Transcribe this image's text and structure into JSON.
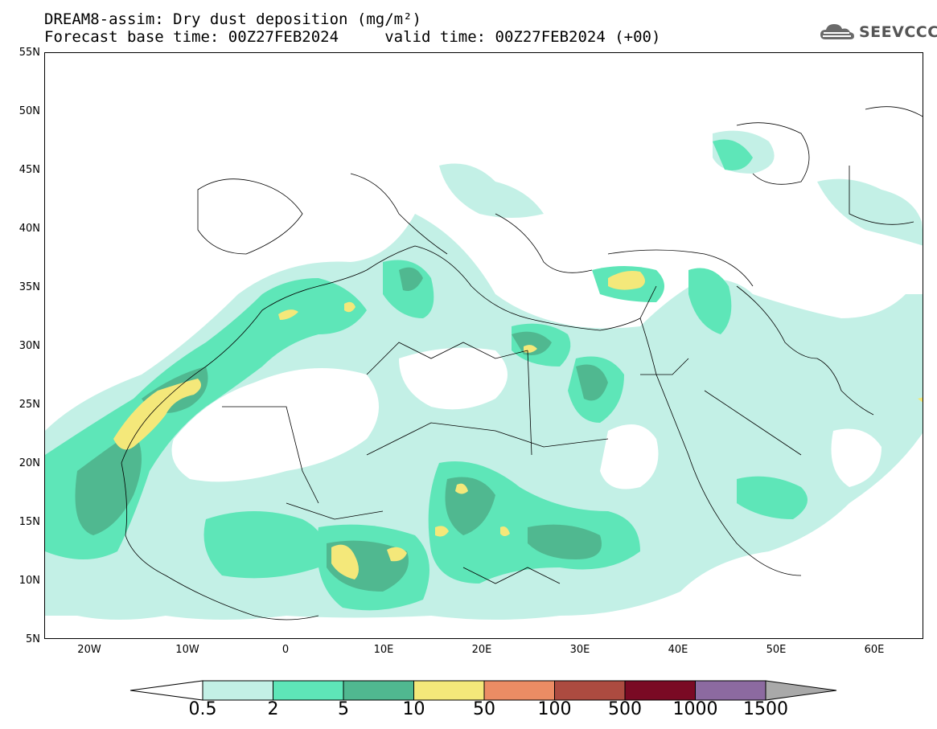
{
  "title": {
    "line1": "DREAM8-assim: Dry dust deposition (mg/m²)",
    "line2": "Forecast base time: 00Z27FEB2024     valid time: 00Z27FEB2024 (+00)"
  },
  "logo": {
    "text": "SEEVCCC",
    "icon": "cloud-icon"
  },
  "map": {
    "lat_labels": [
      "55N",
      "50N",
      "45N",
      "40N",
      "35N",
      "30N",
      "25N",
      "20N",
      "15N",
      "10N",
      "5N"
    ],
    "lon_labels": [
      "20W",
      "10W",
      "0",
      "10E",
      "20E",
      "30E",
      "40E",
      "50E",
      "60E"
    ],
    "lon_range": [
      -25,
      65
    ],
    "lat_range": [
      5,
      55
    ]
  },
  "legend": {
    "labels": [
      "0.5",
      "2",
      "5",
      "10",
      "50",
      "100",
      "500",
      "1000",
      "1500"
    ],
    "colors": [
      "#c3f0e6",
      "#5ee6b8",
      "#50b890",
      "#f4e87a",
      "#eb8c64",
      "#ac4b40",
      "#7a0a24",
      "#8c6aa0"
    ],
    "under_color": "#ffffff",
    "over_color": "#a9a9a9"
  }
}
